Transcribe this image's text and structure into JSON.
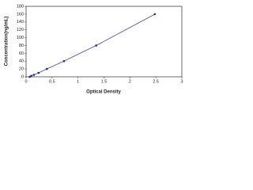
{
  "chart_data": {
    "type": "line",
    "x_label": "Optical Density",
    "y_label": "Concentration(ng/mL)",
    "x": [
      0.07,
      0.1,
      0.15,
      0.24,
      0.4,
      0.73,
      1.35,
      2.48
    ],
    "values": [
      0,
      2.5,
      5,
      10,
      20,
      40,
      80,
      160
    ],
    "color": "#1f2a8c",
    "xlim": [
      0,
      3
    ],
    "xticks": [
      0,
      0.5,
      1,
      1.5,
      2,
      2.5,
      3
    ],
    "ylim": [
      0,
      180
    ],
    "yticks": [
      0,
      20,
      40,
      60,
      80,
      100,
      120,
      140,
      160,
      180
    ]
  }
}
